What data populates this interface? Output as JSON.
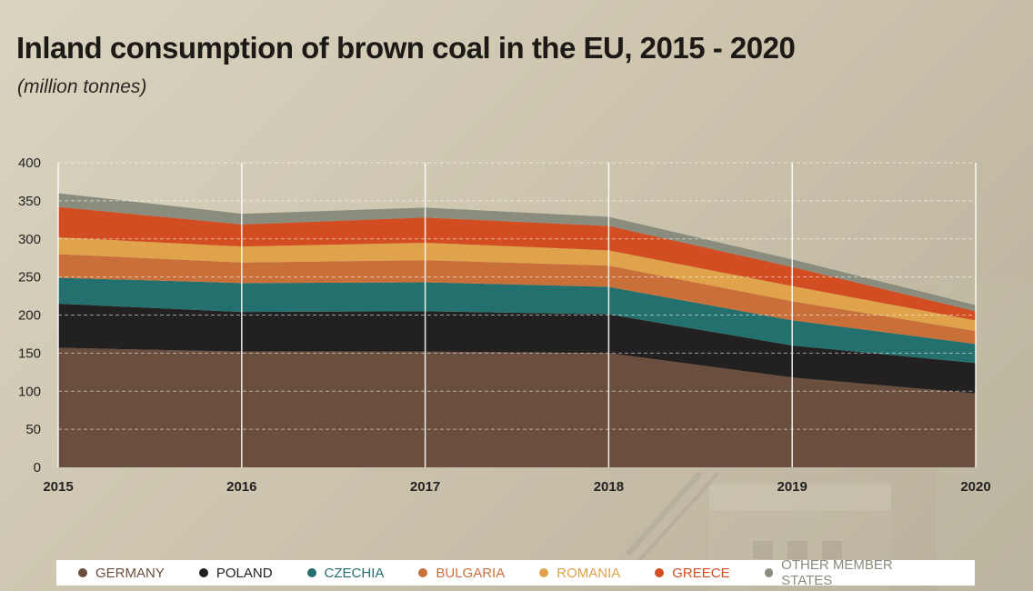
{
  "chart_data": {
    "type": "area",
    "stacked": true,
    "title": "Inland consumption of brown coal in the EU, 2015 - 2020",
    "subtitle": "(million tonnes)",
    "x": [
      "2015",
      "2016",
      "2017",
      "2018",
      "2019",
      "2020"
    ],
    "ylim": [
      0,
      400
    ],
    "yticks": [
      "0",
      "50",
      "100",
      "150",
      "200",
      "250",
      "300",
      "350",
      "400"
    ],
    "grid": true,
    "legend_position": "bottom",
    "series": [
      {
        "name": "GERMANY",
        "color": "#6a4e3e",
        "values": [
          157,
          152,
          152,
          150,
          118,
          97
        ]
      },
      {
        "name": "POLAND",
        "color": "#232021",
        "values": [
          58,
          52,
          53,
          51,
          42,
          40
        ]
      },
      {
        "name": "CZECHIA",
        "color": "#24706e",
        "values": [
          34,
          38,
          38,
          36,
          33,
          25
        ]
      },
      {
        "name": "BULGARIA",
        "color": "#c9703a",
        "values": [
          31,
          27,
          29,
          28,
          25,
          17
        ]
      },
      {
        "name": "ROMANIA",
        "color": "#e0a24a",
        "values": [
          22,
          21,
          23,
          20,
          20,
          14
        ]
      },
      {
        "name": "GREECE",
        "color": "#d24e22",
        "values": [
          40,
          29,
          33,
          32,
          25,
          12
        ]
      },
      {
        "name": "OTHER MEMBER STATES",
        "color": "#8a8c7e",
        "values": [
          18,
          14,
          13,
          12,
          10,
          8
        ]
      }
    ]
  }
}
